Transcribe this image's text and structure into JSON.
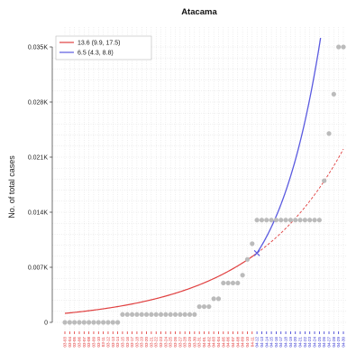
{
  "chart_data": {
    "type": "scatter",
    "title": "Atacama",
    "ylabel": "No. of  total cases",
    "xlabel": "",
    "ylim": [
      0,
      0.035
    ],
    "y_ticks": [
      {
        "value": 0,
        "label": "0"
      },
      {
        "value": 0.007,
        "label": "0.007K"
      },
      {
        "value": 0.014,
        "label": "0.014K"
      },
      {
        "value": 0.021,
        "label": "0.021K"
      },
      {
        "value": 0.028,
        "label": "0.028K"
      },
      {
        "value": 0.035,
        "label": "0.035K"
      }
    ],
    "grid": true,
    "legend_position": "top-left",
    "colors": {
      "fit_red": "#e04040",
      "fit_blue": "#5a5ae0",
      "points": "#bbbbbb",
      "tick_red": "#e03030",
      "tick_blue": "#3030d0"
    },
    "split_index": 40,
    "x_labels": [
      "03-03",
      "03-04",
      "03-05",
      "03-06",
      "03-07",
      "03-08",
      "03-09",
      "03-10",
      "03-11",
      "03-12",
      "03-13",
      "03-14",
      "03-15",
      "03-16",
      "03-17",
      "03-18",
      "03-19",
      "03-20",
      "03-21",
      "03-22",
      "03-23",
      "03-24",
      "03-25",
      "03-26",
      "03-27",
      "03-28",
      "03-29",
      "03-30",
      "03-31",
      "04-01",
      "04-02",
      "04-03",
      "04-04",
      "04-05",
      "04-06",
      "04-07",
      "04-08",
      "04-09",
      "04-10",
      "04-11",
      "04-12",
      "04-13",
      "04-14",
      "04-15",
      "04-16",
      "04-17",
      "04-18",
      "04-19",
      "04-20",
      "04-21",
      "04-22",
      "04-23",
      "04-24",
      "04-25",
      "04-26",
      "04-27",
      "04-28",
      "04-29",
      "04-30"
    ],
    "points_index": [
      0,
      1,
      2,
      3,
      4,
      5,
      6,
      7,
      8,
      9,
      10,
      11,
      12,
      13,
      14,
      15,
      16,
      17,
      18,
      19,
      20,
      21,
      22,
      23,
      24,
      25,
      26,
      27,
      28,
      29,
      30,
      31,
      32,
      33,
      34,
      35,
      36,
      37,
      38,
      39,
      40,
      41,
      42,
      43,
      44,
      45,
      46,
      47,
      48,
      49,
      50,
      51,
      52,
      53,
      54,
      55,
      56,
      57,
      58
    ],
    "points_value": [
      0,
      0,
      0,
      0,
      0,
      0,
      0,
      0,
      0,
      0,
      0,
      0,
      0.001,
      0.001,
      0.001,
      0.001,
      0.001,
      0.001,
      0.001,
      0.001,
      0.001,
      0.001,
      0.001,
      0.001,
      0.001,
      0.001,
      0.001,
      0.001,
      0.002,
      0.002,
      0.002,
      0.003,
      0.003,
      0.005,
      0.005,
      0.005,
      0.005,
      0.006,
      0.008,
      0.01,
      0.013,
      0.013,
      0.013,
      0.013,
      0.013,
      0.013,
      0.013,
      0.013,
      0.013,
      0.013,
      0.013,
      0.013,
      0.013,
      0.013,
      0.018,
      0.024,
      0.029,
      0.035,
      0.035
    ],
    "series": [
      {
        "name": "13.6 (9.9, 17.5)",
        "doubling_time": 13.6,
        "style": "exponential-fit-dashed-extension"
      },
      {
        "name": "6.5 (4.3, 8.8)",
        "doubling_time": 6.5,
        "style": "exponential-fit"
      }
    ]
  }
}
